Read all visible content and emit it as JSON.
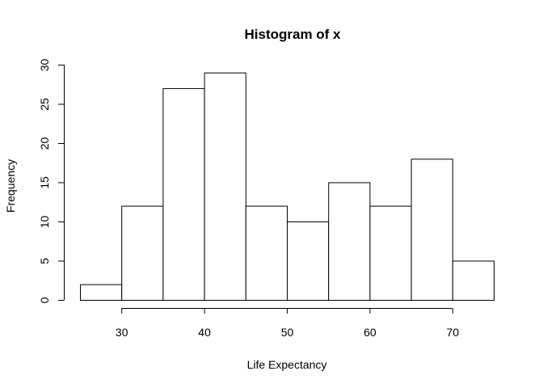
{
  "chart_data": {
    "type": "bar",
    "title": "Histogram of x",
    "xlabel": "Life Expectancy",
    "ylabel": "Frequency",
    "bin_edges": [
      25,
      30,
      35,
      40,
      45,
      50,
      55,
      60,
      65,
      70,
      75
    ],
    "values": [
      2,
      12,
      27,
      29,
      12,
      10,
      15,
      12,
      18,
      5
    ],
    "x_ticks": [
      30,
      40,
      50,
      60,
      70
    ],
    "y_ticks": [
      0,
      5,
      10,
      15,
      20,
      25,
      30
    ],
    "xlim": [
      25,
      75
    ],
    "ylim": [
      0,
      30
    ],
    "grid": false,
    "colors": {
      "bar_fill": "#ffffff",
      "bar_stroke": "#000000",
      "axis": "#000000"
    }
  }
}
